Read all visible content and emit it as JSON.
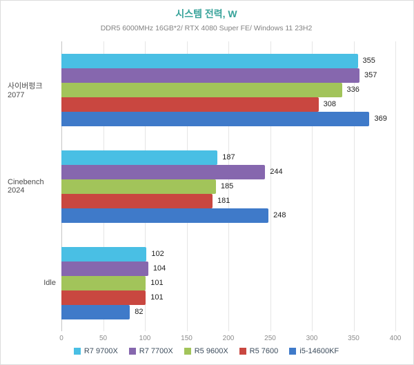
{
  "chart_data": {
    "type": "bar",
    "orientation": "horizontal",
    "title": "시스템 전력, W",
    "subtitle": "DDR5 6000MHz 16GB*2/ RTX 4080 Super FE/ Windows 11 23H2",
    "categories": [
      "사이버펑크 2077",
      "Cinebench 2024",
      "Idle"
    ],
    "series": [
      {
        "name": "R7 9700X",
        "color": "#49bfe4",
        "values": [
          355,
          187,
          102
        ]
      },
      {
        "name": "R7 7700X",
        "color": "#8667ae",
        "values": [
          357,
          244,
          104
        ]
      },
      {
        "name": "R5 9600X",
        "color": "#a2c45a",
        "values": [
          336,
          185,
          101
        ]
      },
      {
        "name": "R5 7600",
        "color": "#c94740",
        "values": [
          308,
          181,
          101
        ]
      },
      {
        "name": "i5-14600KF",
        "color": "#3f7ac9",
        "values": [
          369,
          248,
          82
        ]
      }
    ],
    "xlim": [
      0,
      400
    ],
    "x_ticks": [
      0,
      50,
      100,
      150,
      200,
      250,
      300,
      350,
      400
    ],
    "grid": true,
    "legend_position": "bottom"
  }
}
